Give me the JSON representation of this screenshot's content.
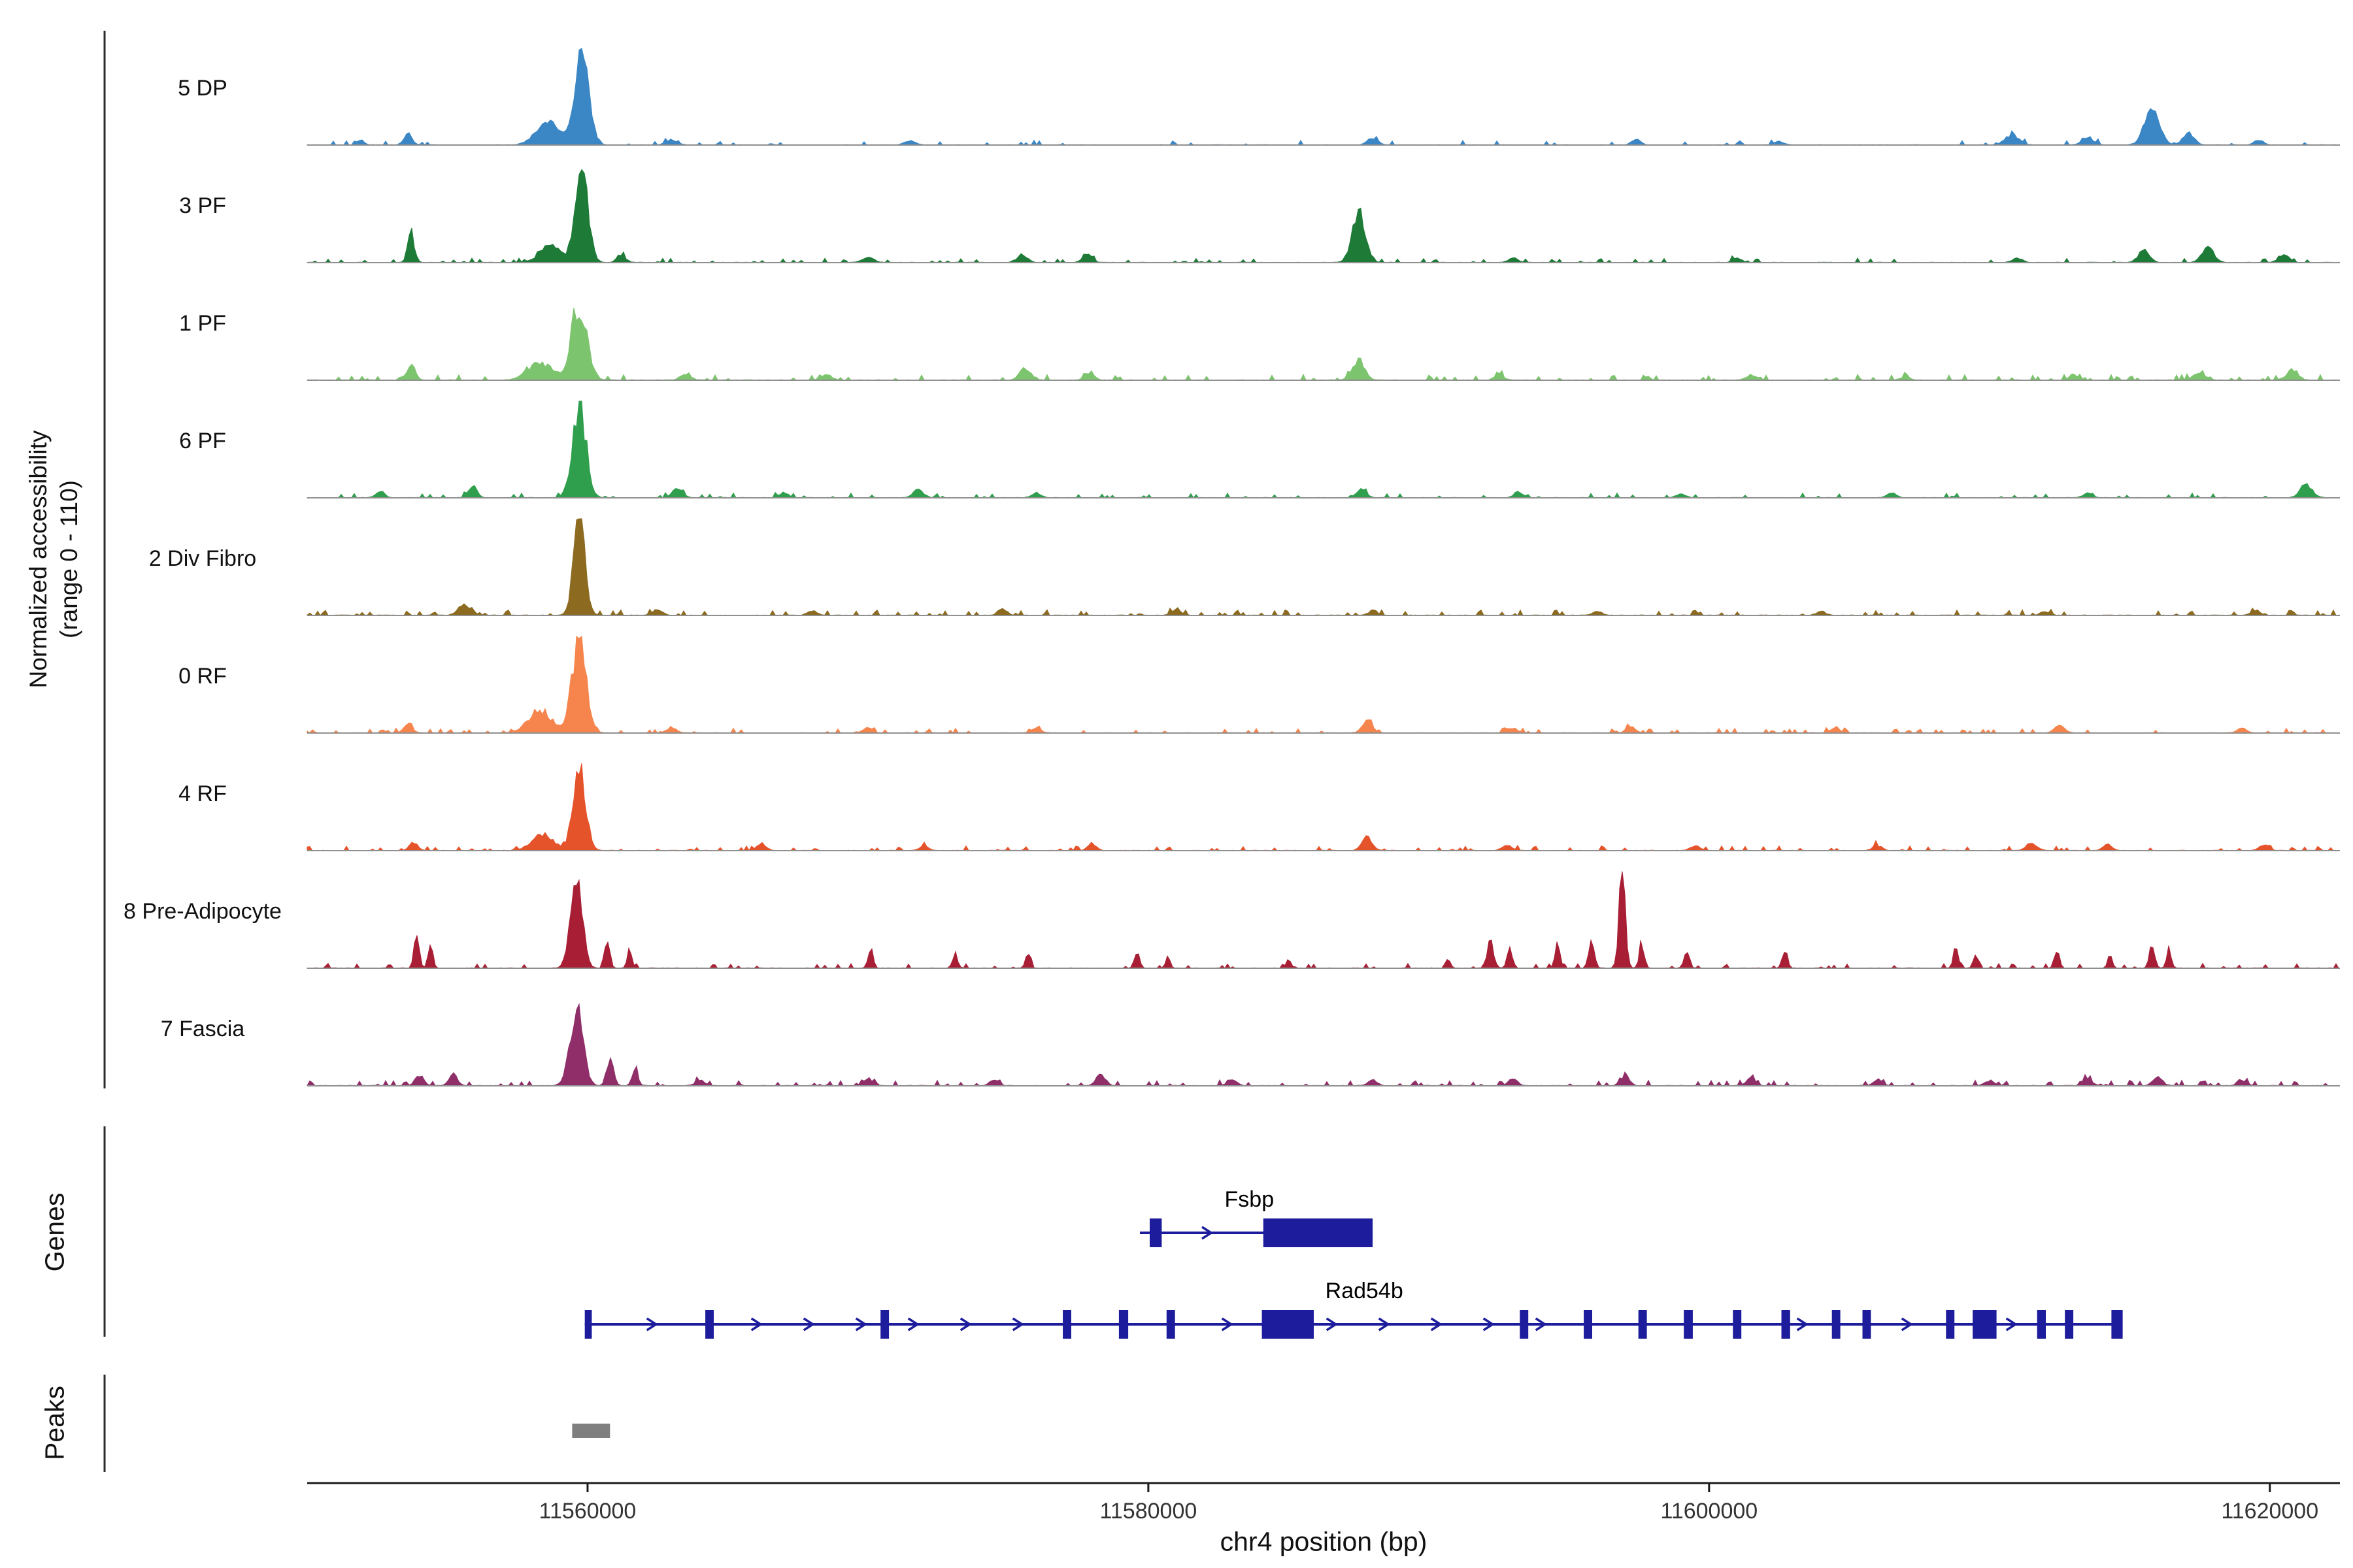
{
  "figure": {
    "y_axis_label_line1": "Normalized accessibility",
    "y_axis_label_line2": "(range 0 - 110)",
    "genes_section_label": "Genes",
    "peaks_section_label": "Peaks",
    "x_axis_label": "chr4 position (bp)"
  },
  "chart_data": {
    "type": "area",
    "chromosome": "chr4",
    "region_start": 11550000,
    "region_end": 11622500,
    "ylim_per_track": [
      0,
      110
    ],
    "x_ticks": [
      11560000,
      11580000,
      11600000,
      11620000
    ],
    "x_tick_labels": [
      "11560000",
      "11580000",
      "11600000",
      "11620000"
    ],
    "baseline_color": "#909090",
    "axis_color": "#1a1a1a",
    "gene_color": "#1c1c9c",
    "peak_color": "#7f7f7f",
    "tracks": [
      {
        "label": "5 DP",
        "color": "#3b86c4",
        "seed": 11,
        "noise_amp": 0.05,
        "noise_density": 0.08,
        "peaks": [
          [
            11559800,
            1.0,
            240
          ],
          [
            11558600,
            0.22,
            420
          ],
          [
            11553600,
            0.1,
            150
          ],
          [
            11551900,
            0.05,
            130
          ],
          [
            11563000,
            0.05,
            200
          ],
          [
            11571500,
            0.04,
            200
          ],
          [
            11588000,
            0.07,
            180
          ],
          [
            11597400,
            0.06,
            150
          ],
          [
            11602500,
            0.04,
            160
          ],
          [
            11610800,
            0.1,
            250
          ],
          [
            11613500,
            0.08,
            200
          ],
          [
            11615800,
            0.38,
            260
          ],
          [
            11617100,
            0.12,
            200
          ],
          [
            11619600,
            0.05,
            160
          ]
        ]
      },
      {
        "label": "3 PF",
        "color": "#1e7b37",
        "seed": 22,
        "noise_amp": 0.05,
        "noise_density": 0.11,
        "peaks": [
          [
            11553700,
            0.3,
            120
          ],
          [
            11559800,
            0.92,
            220
          ],
          [
            11558700,
            0.18,
            380
          ],
          [
            11561200,
            0.08,
            150
          ],
          [
            11570000,
            0.05,
            200
          ],
          [
            11575500,
            0.08,
            180
          ],
          [
            11577800,
            0.1,
            150
          ],
          [
            11587500,
            0.5,
            230
          ],
          [
            11593000,
            0.05,
            160
          ],
          [
            11601000,
            0.04,
            160
          ],
          [
            11611000,
            0.05,
            160
          ],
          [
            11615500,
            0.12,
            200
          ],
          [
            11617800,
            0.14,
            220
          ],
          [
            11620500,
            0.08,
            180
          ]
        ]
      },
      {
        "label": "1 PF",
        "color": "#7dc46e",
        "seed": 33,
        "noise_amp": 0.06,
        "noise_density": 0.14,
        "peaks": [
          [
            11553700,
            0.15,
            150
          ],
          [
            11559700,
            0.78,
            270
          ],
          [
            11558300,
            0.18,
            420
          ],
          [
            11563500,
            0.06,
            180
          ],
          [
            11568500,
            0.06,
            180
          ],
          [
            11575600,
            0.12,
            200
          ],
          [
            11577900,
            0.08,
            160
          ],
          [
            11587500,
            0.2,
            220
          ],
          [
            11592500,
            0.05,
            160
          ],
          [
            11601500,
            0.05,
            180
          ],
          [
            11607000,
            0.04,
            160
          ],
          [
            11613000,
            0.05,
            160
          ],
          [
            11617500,
            0.08,
            200
          ],
          [
            11620800,
            0.1,
            200
          ]
        ]
      },
      {
        "label": "6 PF",
        "color": "#2f9e4d",
        "seed": 44,
        "noise_amp": 0.05,
        "noise_density": 0.11,
        "peaks": [
          [
            11552600,
            0.07,
            150
          ],
          [
            11555900,
            0.12,
            150
          ],
          [
            11559700,
            0.95,
            240
          ],
          [
            11563200,
            0.1,
            180
          ],
          [
            11567000,
            0.05,
            160
          ],
          [
            11571800,
            0.08,
            180
          ],
          [
            11576000,
            0.05,
            160
          ],
          [
            11587600,
            0.08,
            180
          ],
          [
            11593200,
            0.06,
            160
          ],
          [
            11599000,
            0.04,
            160
          ],
          [
            11606500,
            0.05,
            160
          ],
          [
            11613500,
            0.05,
            160
          ],
          [
            11621300,
            0.12,
            220
          ]
        ]
      },
      {
        "label": "2 Div Fibro",
        "color": "#8c6b20",
        "seed": 55,
        "noise_amp": 0.06,
        "noise_density": 0.16,
        "peaks": [
          [
            11555600,
            0.1,
            220
          ],
          [
            11559700,
            1.0,
            200
          ],
          [
            11562500,
            0.06,
            160
          ],
          [
            11568000,
            0.05,
            160
          ],
          [
            11574800,
            0.06,
            160
          ],
          [
            11581000,
            0.05,
            160
          ],
          [
            11588000,
            0.05,
            160
          ],
          [
            11596000,
            0.04,
            160
          ],
          [
            11604000,
            0.04,
            160
          ],
          [
            11612000,
            0.04,
            160
          ],
          [
            11619500,
            0.05,
            160
          ]
        ]
      },
      {
        "label": "0 RF",
        "color": "#f6854d",
        "seed": 66,
        "noise_amp": 0.05,
        "noise_density": 0.13,
        "peaks": [
          [
            11553600,
            0.1,
            150
          ],
          [
            11559700,
            0.97,
            250
          ],
          [
            11558300,
            0.22,
            420
          ],
          [
            11563000,
            0.06,
            160
          ],
          [
            11570000,
            0.05,
            160
          ],
          [
            11576000,
            0.05,
            160
          ],
          [
            11587800,
            0.12,
            180
          ],
          [
            11593000,
            0.05,
            160
          ],
          [
            11597200,
            0.06,
            160
          ],
          [
            11604500,
            0.05,
            160
          ],
          [
            11612500,
            0.07,
            180
          ],
          [
            11619000,
            0.05,
            160
          ]
        ]
      },
      {
        "label": "4 RF",
        "color": "#e5532b",
        "seed": 77,
        "noise_amp": 0.05,
        "noise_density": 0.13,
        "peaks": [
          [
            11553800,
            0.08,
            150
          ],
          [
            11559700,
            0.82,
            220
          ],
          [
            11558400,
            0.16,
            380
          ],
          [
            11566200,
            0.08,
            160
          ],
          [
            11572000,
            0.05,
            160
          ],
          [
            11578000,
            0.06,
            160
          ],
          [
            11587800,
            0.14,
            180
          ],
          [
            11592800,
            0.06,
            160
          ],
          [
            11599500,
            0.05,
            160
          ],
          [
            11606000,
            0.05,
            160
          ],
          [
            11611500,
            0.08,
            180
          ],
          [
            11614200,
            0.06,
            160
          ],
          [
            11619800,
            0.06,
            160
          ]
        ]
      },
      {
        "label": "8 Pre-Adipocyte",
        "color": "#a81e34",
        "seed": 88,
        "noise_amp": 0.05,
        "noise_density": 0.1,
        "peaks": [
          [
            11553900,
            0.32,
            90
          ],
          [
            11554400,
            0.24,
            80
          ],
          [
            11559600,
            0.88,
            210
          ],
          [
            11560700,
            0.3,
            90
          ],
          [
            11561500,
            0.22,
            80
          ],
          [
            11570100,
            0.18,
            90
          ],
          [
            11573100,
            0.14,
            90
          ],
          [
            11575700,
            0.14,
            90
          ],
          [
            11579600,
            0.16,
            90
          ],
          [
            11580700,
            0.12,
            80
          ],
          [
            11585000,
            0.1,
            80
          ],
          [
            11590700,
            0.1,
            80
          ],
          [
            11592200,
            0.28,
            110
          ],
          [
            11592900,
            0.2,
            90
          ],
          [
            11594600,
            0.24,
            90
          ],
          [
            11595800,
            0.3,
            100
          ],
          [
            11596900,
            1.0,
            110
          ],
          [
            11597600,
            0.25,
            90
          ],
          [
            11599200,
            0.2,
            90
          ],
          [
            11602700,
            0.2,
            90
          ],
          [
            11608800,
            0.2,
            90
          ],
          [
            11609500,
            0.14,
            80
          ],
          [
            11612400,
            0.2,
            90
          ],
          [
            11614300,
            0.14,
            80
          ],
          [
            11615800,
            0.26,
            90
          ],
          [
            11616400,
            0.2,
            80
          ]
        ]
      },
      {
        "label": "7 Fascia",
        "color": "#8f2e68",
        "seed": 99,
        "noise_amp": 0.06,
        "noise_density": 0.16,
        "peaks": [
          [
            11554000,
            0.1,
            150
          ],
          [
            11555200,
            0.12,
            150
          ],
          [
            11559600,
            0.78,
            230
          ],
          [
            11560800,
            0.28,
            120
          ],
          [
            11561700,
            0.18,
            100
          ],
          [
            11564000,
            0.06,
            160
          ],
          [
            11570000,
            0.07,
            160
          ],
          [
            11574500,
            0.06,
            160
          ],
          [
            11578300,
            0.12,
            160
          ],
          [
            11583000,
            0.06,
            160
          ],
          [
            11588000,
            0.06,
            160
          ],
          [
            11593000,
            0.07,
            160
          ],
          [
            11597000,
            0.1,
            160
          ],
          [
            11601500,
            0.08,
            160
          ],
          [
            11606000,
            0.06,
            160
          ],
          [
            11610000,
            0.05,
            160
          ],
          [
            11613500,
            0.08,
            160
          ],
          [
            11616000,
            0.1,
            160
          ],
          [
            11619000,
            0.06,
            160
          ]
        ]
      }
    ],
    "genes": [
      {
        "name": "Fsbp",
        "strand": "+",
        "row": 0,
        "start": 11579700,
        "end": 11588000,
        "label_x": 11583600,
        "exons": [
          [
            11580050,
            11580480
          ],
          [
            11584100,
            11588000
          ]
        ]
      },
      {
        "name": "Rad54b",
        "strand": "+",
        "row": 1,
        "start": 11559900,
        "end": 11614650,
        "label_x": 11587700,
        "exons": [
          [
            11559900,
            11560150
          ],
          [
            11564200,
            11564500
          ],
          [
            11570450,
            11570750
          ],
          [
            11576950,
            11577250
          ],
          [
            11578950,
            11579280
          ],
          [
            11580650,
            11580950
          ],
          [
            11584050,
            11585900
          ],
          [
            11593250,
            11593550
          ],
          [
            11595530,
            11595830
          ],
          [
            11597480,
            11597780
          ],
          [
            11599100,
            11599420
          ],
          [
            11600850,
            11601150
          ],
          [
            11602580,
            11602890
          ],
          [
            11604380,
            11604680
          ],
          [
            11605470,
            11605770
          ],
          [
            11608450,
            11608750
          ],
          [
            11609400,
            11610250
          ],
          [
            11611700,
            11612010
          ],
          [
            11612690,
            11612990
          ],
          [
            11614350,
            11614750
          ]
        ]
      }
    ],
    "peak_regions": [
      [
        11559450,
        11560800
      ]
    ]
  }
}
